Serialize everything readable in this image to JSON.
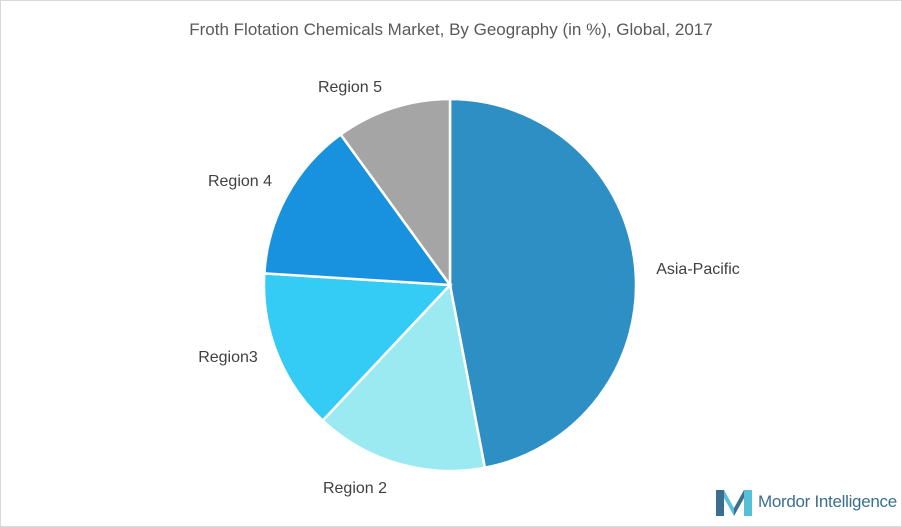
{
  "title": "Froth Flotation Chemicals Market, By Geography (in %), Global, 2017",
  "chart_data": {
    "type": "pie",
    "title": "Froth Flotation Chemicals Market, By Geography (in %), Global, 2017",
    "start_angle_deg": 0,
    "direction": "clockwise",
    "slices": [
      {
        "label": "Asia-Pacific",
        "value": 47,
        "color": "#2e8fc4"
      },
      {
        "label": "Region 2",
        "value": 15,
        "color": "#9be9f1"
      },
      {
        "label": "Region3",
        "value": 14,
        "color": "#34cbf4"
      },
      {
        "label": "Region 4",
        "value": 14,
        "color": "#1891de"
      },
      {
        "label": "Region 5",
        "value": 10,
        "color": "#a5a5a5"
      }
    ]
  },
  "branding": {
    "logo_text": "Mordor Intelligence",
    "logo_colors": [
      "#3a6f8f",
      "#56c1d6"
    ]
  }
}
